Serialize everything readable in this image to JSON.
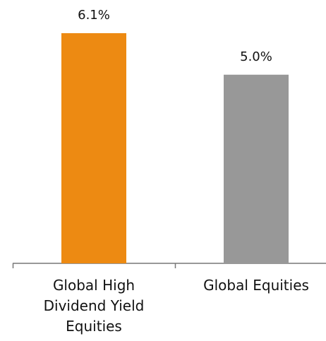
{
  "chart_data": {
    "type": "bar",
    "categories": [
      "Global High Dividend Yield Equities",
      "Global Equities"
    ],
    "values": [
      6.1,
      5.0
    ],
    "value_labels": [
      "6.1%",
      "5.0%"
    ],
    "colors": [
      "#ed8a12",
      "#989898"
    ]
  }
}
